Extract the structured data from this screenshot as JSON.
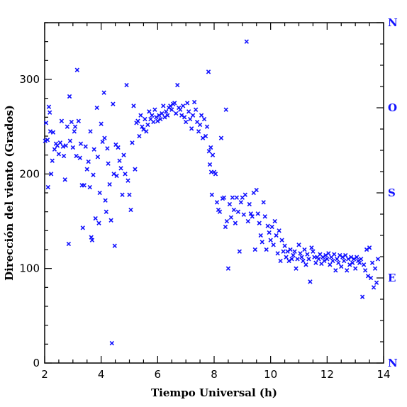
{
  "chart_data": {
    "type": "scatter",
    "title": "",
    "xlabel": "Tiempo Universal (h)",
    "ylabel": "Dirección del viento (Grados)",
    "xlim": [
      2,
      14
    ],
    "ylim": [
      0,
      360
    ],
    "xticks": [
      2,
      4,
      6,
      8,
      10,
      12,
      14
    ],
    "yticks": [
      0,
      100,
      200,
      300
    ],
    "right_axis_labels": [
      {
        "value": 0,
        "label": "N"
      },
      {
        "value": 90,
        "label": "E"
      },
      {
        "value": 180,
        "label": "S"
      },
      {
        "value": 270,
        "label": "O"
      },
      {
        "value": 360,
        "label": "N"
      }
    ],
    "marker": "x",
    "marker_color": "#1010ff",
    "grid": false,
    "series": [
      {
        "points": [
          [
            2.02,
            235
          ],
          [
            2.05,
            254
          ],
          [
            2.1,
            236
          ],
          [
            2.12,
            186
          ],
          [
            2.15,
            271
          ],
          [
            2.18,
            265
          ],
          [
            2.2,
            245
          ],
          [
            2.23,
            200
          ],
          [
            2.27,
            214
          ],
          [
            2.3,
            244
          ],
          [
            2.35,
            226
          ],
          [
            2.4,
            232
          ],
          [
            2.45,
            230
          ],
          [
            2.5,
            221
          ],
          [
            2.55,
            233
          ],
          [
            2.6,
            256
          ],
          [
            2.65,
            229
          ],
          [
            2.68,
            219
          ],
          [
            2.72,
            194
          ],
          [
            2.75,
            230
          ],
          [
            2.8,
            250
          ],
          [
            2.85,
            126
          ],
          [
            2.88,
            282
          ],
          [
            2.9,
            235
          ],
          [
            2.95,
            255
          ],
          [
            3.0,
            228
          ],
          [
            3.05,
            245
          ],
          [
            3.08,
            250
          ],
          [
            3.12,
            219
          ],
          [
            3.15,
            310
          ],
          [
            3.2,
            256
          ],
          [
            3.25,
            217
          ],
          [
            3.28,
            232
          ],
          [
            3.32,
            188
          ],
          [
            3.35,
            143
          ],
          [
            3.4,
            188
          ],
          [
            3.45,
            229
          ],
          [
            3.5,
            205
          ],
          [
            3.55,
            213
          ],
          [
            3.6,
            186
          ],
          [
            3.62,
            245
          ],
          [
            3.65,
            133
          ],
          [
            3.68,
            130
          ],
          [
            3.72,
            199
          ],
          [
            3.75,
            226
          ],
          [
            3.8,
            153
          ],
          [
            3.85,
            270
          ],
          [
            3.88,
            218
          ],
          [
            3.92,
            148
          ],
          [
            3.95,
            180
          ],
          [
            4.0,
            253
          ],
          [
            4.05,
            234
          ],
          [
            4.1,
            286
          ],
          [
            4.12,
            238
          ],
          [
            4.15,
            172
          ],
          [
            4.18,
            160
          ],
          [
            4.22,
            227
          ],
          [
            4.25,
            211
          ],
          [
            4.3,
            189
          ],
          [
            4.35,
            151
          ],
          [
            4.38,
            21
          ],
          [
            4.42,
            274
          ],
          [
            4.45,
            200
          ],
          [
            4.48,
            124
          ],
          [
            4.52,
            231
          ],
          [
            4.55,
            198
          ],
          [
            4.6,
            228
          ],
          [
            4.65,
            214
          ],
          [
            4.7,
            206
          ],
          [
            4.75,
            178
          ],
          [
            4.8,
            220
          ],
          [
            4.85,
            200
          ],
          [
            4.9,
            294
          ],
          [
            4.95,
            193
          ],
          [
            5.0,
            178
          ],
          [
            5.05,
            162
          ],
          [
            5.1,
            233
          ],
          [
            5.15,
            272
          ],
          [
            5.2,
            205
          ],
          [
            5.25,
            254
          ],
          [
            5.3,
            256
          ],
          [
            5.35,
            240
          ],
          [
            5.4,
            262
          ],
          [
            5.45,
            250
          ],
          [
            5.5,
            247
          ],
          [
            5.55,
            258
          ],
          [
            5.6,
            245
          ],
          [
            5.65,
            252
          ],
          [
            5.7,
            266
          ],
          [
            5.75,
            258
          ],
          [
            5.8,
            262
          ],
          [
            5.85,
            255
          ],
          [
            5.9,
            268
          ],
          [
            5.95,
            260
          ],
          [
            6.0,
            256
          ],
          [
            6.05,
            262
          ],
          [
            6.1,
            258
          ],
          [
            6.15,
            264
          ],
          [
            6.2,
            272
          ],
          [
            6.25,
            260
          ],
          [
            6.3,
            266
          ],
          [
            6.35,
            262
          ],
          [
            6.4,
            270
          ],
          [
            6.45,
            272
          ],
          [
            6.5,
            268
          ],
          [
            6.55,
            274
          ],
          [
            6.6,
            275
          ],
          [
            6.65,
            264
          ],
          [
            6.7,
            294
          ],
          [
            6.75,
            270
          ],
          [
            6.8,
            268
          ],
          [
            6.85,
            262
          ],
          [
            6.9,
            272
          ],
          [
            6.95,
            260
          ],
          [
            7.0,
            255
          ],
          [
            7.05,
            275
          ],
          [
            7.1,
            266
          ],
          [
            7.15,
            258
          ],
          [
            7.2,
            248
          ],
          [
            7.25,
            262
          ],
          [
            7.3,
            276
          ],
          [
            7.35,
            268
          ],
          [
            7.4,
            255
          ],
          [
            7.45,
            245
          ],
          [
            7.5,
            252
          ],
          [
            7.55,
            262
          ],
          [
            7.6,
            238
          ],
          [
            7.65,
            258
          ],
          [
            7.7,
            240
          ],
          [
            7.75,
            250
          ],
          [
            7.8,
            308
          ],
          [
            7.82,
            224
          ],
          [
            7.85,
            210
          ],
          [
            7.88,
            228
          ],
          [
            7.9,
            202
          ],
          [
            7.92,
            178
          ],
          [
            7.95,
            220
          ],
          [
            8.0,
            202
          ],
          [
            8.05,
            200
          ],
          [
            8.1,
            170
          ],
          [
            8.15,
            162
          ],
          [
            8.2,
            160
          ],
          [
            8.25,
            238
          ],
          [
            8.3,
            174
          ],
          [
            8.35,
            175
          ],
          [
            8.4,
            144
          ],
          [
            8.42,
            268
          ],
          [
            8.45,
            150
          ],
          [
            8.5,
            100
          ],
          [
            8.55,
            168
          ],
          [
            8.6,
            154
          ],
          [
            8.65,
            175
          ],
          [
            8.7,
            162
          ],
          [
            8.75,
            148
          ],
          [
            8.8,
            175
          ],
          [
            8.85,
            160
          ],
          [
            8.9,
            118
          ],
          [
            8.95,
            170
          ],
          [
            9.0,
            175
          ],
          [
            9.05,
            157
          ],
          [
            9.1,
            178
          ],
          [
            9.15,
            340
          ],
          [
            9.2,
            150
          ],
          [
            9.25,
            168
          ],
          [
            9.3,
            158
          ],
          [
            9.35,
            155
          ],
          [
            9.4,
            180
          ],
          [
            9.45,
            120
          ],
          [
            9.5,
            183
          ],
          [
            9.55,
            158
          ],
          [
            9.6,
            148
          ],
          [
            9.65,
            135
          ],
          [
            9.7,
            128
          ],
          [
            9.75,
            170
          ],
          [
            9.8,
            155
          ],
          [
            9.85,
            120
          ],
          [
            9.9,
            145
          ],
          [
            9.95,
            138
          ],
          [
            10.0,
            130
          ],
          [
            10.05,
            144
          ],
          [
            10.1,
            125
          ],
          [
            10.15,
            150
          ],
          [
            10.2,
            135
          ],
          [
            10.25,
            116
          ],
          [
            10.3,
            140
          ],
          [
            10.35,
            108
          ],
          [
            10.4,
            130
          ],
          [
            10.45,
            118
          ],
          [
            10.5,
            124
          ],
          [
            10.55,
            112
          ],
          [
            10.6,
            118
          ],
          [
            10.65,
            108
          ],
          [
            10.7,
            120
          ],
          [
            10.75,
            110
          ],
          [
            10.8,
            114
          ],
          [
            10.85,
            118
          ],
          [
            10.9,
            100
          ],
          [
            10.95,
            110
          ],
          [
            11.0,
            125
          ],
          [
            11.05,
            116
          ],
          [
            11.1,
            112
          ],
          [
            11.15,
            108
          ],
          [
            11.2,
            120
          ],
          [
            11.25,
            104
          ],
          [
            11.3,
            115
          ],
          [
            11.35,
            110
          ],
          [
            11.4,
            86
          ],
          [
            11.45,
            122
          ],
          [
            11.5,
            118
          ],
          [
            11.55,
            112
          ],
          [
            11.6,
            106
          ],
          [
            11.65,
            112
          ],
          [
            11.7,
            110
          ],
          [
            11.75,
            115
          ],
          [
            11.8,
            105
          ],
          [
            11.85,
            112
          ],
          [
            11.9,
            108
          ],
          [
            11.95,
            114
          ],
          [
            12.0,
            110
          ],
          [
            12.05,
            116
          ],
          [
            12.1,
            104
          ],
          [
            12.15,
            112
          ],
          [
            12.2,
            108
          ],
          [
            12.25,
            115
          ],
          [
            12.3,
            98
          ],
          [
            12.35,
            110
          ],
          [
            12.4,
            106
          ],
          [
            12.45,
            114
          ],
          [
            12.5,
            102
          ],
          [
            12.55,
            112
          ],
          [
            12.6,
            108
          ],
          [
            12.65,
            114
          ],
          [
            12.7,
            98
          ],
          [
            12.75,
            110
          ],
          [
            12.8,
            104
          ],
          [
            12.85,
            112
          ],
          [
            12.9,
            106
          ],
          [
            12.95,
            110
          ],
          [
            13.0,
            100
          ],
          [
            13.05,
            112
          ],
          [
            13.1,
            108
          ],
          [
            13.15,
            106
          ],
          [
            13.2,
            110
          ],
          [
            13.25,
            70
          ],
          [
            13.3,
            104
          ],
          [
            13.35,
            98
          ],
          [
            13.4,
            120
          ],
          [
            13.45,
            92
          ],
          [
            13.5,
            122
          ],
          [
            13.55,
            90
          ],
          [
            13.6,
            106
          ],
          [
            13.65,
            80
          ],
          [
            13.7,
            100
          ],
          [
            13.75,
            85
          ],
          [
            13.8,
            110
          ]
        ]
      }
    ]
  }
}
